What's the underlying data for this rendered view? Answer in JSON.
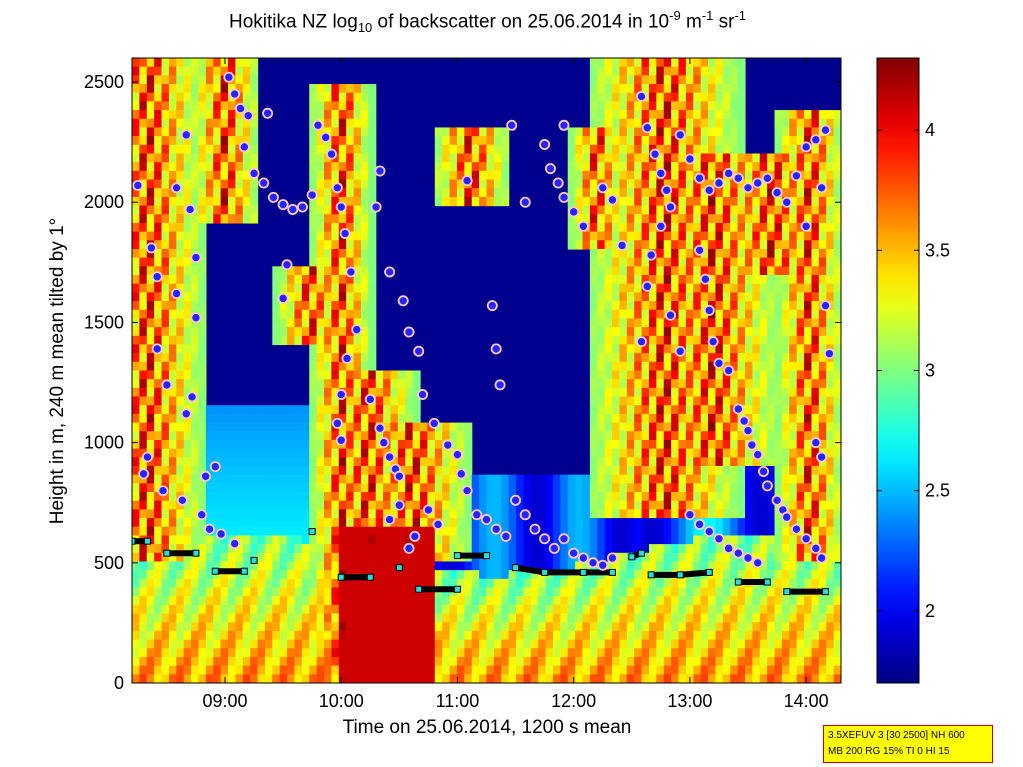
{
  "chart_data": {
    "type": "heatmap",
    "title_parts": [
      "Hokitika NZ log",
      "10",
      " of backscatter on 25.06.2014 in 10",
      "-9",
      " m",
      "-1",
      " sr",
      "-1"
    ],
    "xlabel": "Time on 25.06.2014, 1200 s mean",
    "ylabel": "Height in m, 240 m mean tilted by 1°",
    "x_range": [
      "08:12",
      "14:18"
    ],
    "y_range": [
      0,
      2600
    ],
    "x_ticks": [
      "09:00",
      "10:00",
      "11:00",
      "12:00",
      "13:00",
      "14:00"
    ],
    "y_ticks": [
      0,
      500,
      1000,
      1500,
      2000,
      2500
    ],
    "colorbar": {
      "range": [
        1.7,
        4.3
      ],
      "ticks": [
        2,
        2.5,
        3,
        3.5,
        4
      ],
      "colormap": "jet"
    },
    "series": [
      {
        "name": "cloud base detections",
        "marker": "circle",
        "color": "#2020ff",
        "edge": "#ffc0c0"
      },
      {
        "name": "mixing layer height",
        "marker": "square",
        "color": "#000000"
      },
      {
        "name": "layer markers",
        "marker": "square",
        "color": "#20e0e0"
      }
    ],
    "mixing_layer": [
      [
        "08:12",
        590
      ],
      [
        "08:20",
        590
      ],
      [
        "08:30",
        540
      ],
      [
        "08:45",
        540
      ],
      [
        "08:55",
        465
      ],
      [
        "09:10",
        465
      ],
      [
        "09:15",
        510
      ],
      [
        "09:45",
        630
      ],
      [
        "10:00",
        440
      ],
      [
        "10:15",
        440
      ],
      [
        "10:30",
        480
      ],
      [
        "10:40",
        390
      ],
      [
        "11:00",
        390
      ],
      [
        "11:00",
        530
      ],
      [
        "11:15",
        530
      ],
      [
        "11:30",
        480
      ],
      [
        "11:45",
        460
      ],
      [
        "12:05",
        460
      ],
      [
        "12:20",
        460
      ],
      [
        "12:30",
        525
      ],
      [
        "12:35",
        540
      ],
      [
        "12:40",
        450
      ],
      [
        "12:55",
        450
      ],
      [
        "13:10",
        460
      ],
      [
        "13:25",
        420
      ],
      [
        "13:40",
        420
      ],
      [
        "13:50",
        380
      ],
      [
        "14:10",
        380
      ]
    ],
    "cloud_points": [
      [
        "08:15",
        2070
      ],
      [
        "08:22",
        1810
      ],
      [
        "08:25",
        1690
      ],
      [
        "08:35",
        2060
      ],
      [
        "08:40",
        2280
      ],
      [
        "08:42",
        1970
      ],
      [
        "08:45",
        1770
      ],
      [
        "08:45",
        1520
      ],
      [
        "08:43",
        1190
      ],
      [
        "08:40",
        1120
      ],
      [
        "08:30",
        1240
      ],
      [
        "08:25",
        1390
      ],
      [
        "08:35",
        1620
      ],
      [
        "08:20",
        940
      ],
      [
        "08:18",
        870
      ],
      [
        "08:28",
        800
      ],
      [
        "08:38",
        760
      ],
      [
        "08:48",
        700
      ],
      [
        "08:52",
        640
      ],
      [
        "08:58",
        620
      ],
      [
        "09:05",
        580
      ],
      [
        "08:50",
        860
      ],
      [
        "08:55",
        900
      ],
      [
        "09:02",
        2520
      ],
      [
        "09:05",
        2450
      ],
      [
        "09:08",
        2390
      ],
      [
        "09:12",
        2360
      ],
      [
        "09:10",
        2230
      ],
      [
        "09:15",
        2120
      ],
      [
        "09:20",
        2080
      ],
      [
        "09:25",
        2020
      ],
      [
        "09:30",
        1990
      ],
      [
        "09:35",
        1970
      ],
      [
        "09:40",
        1980
      ],
      [
        "09:45",
        2030
      ],
      [
        "09:48",
        2320
      ],
      [
        "09:52",
        2270
      ],
      [
        "09:55",
        2200
      ],
      [
        "09:58",
        2060
      ],
      [
        "10:00",
        1980
      ],
      [
        "10:02",
        1870
      ],
      [
        "10:05",
        1710
      ],
      [
        "10:08",
        1470
      ],
      [
        "10:03",
        1350
      ],
      [
        "10:00",
        1200
      ],
      [
        "09:58",
        1080
      ],
      [
        "10:00",
        1010
      ],
      [
        "09:32",
        1740
      ],
      [
        "09:30",
        1600
      ],
      [
        "09:22",
        2370
      ],
      [
        "10:15",
        1180
      ],
      [
        "10:20",
        1060
      ],
      [
        "10:22",
        1000
      ],
      [
        "10:25",
        940
      ],
      [
        "10:28",
        890
      ],
      [
        "10:30",
        860
      ],
      [
        "10:20",
        2130
      ],
      [
        "10:18",
        1980
      ],
      [
        "10:25",
        1710
      ],
      [
        "10:32",
        1590
      ],
      [
        "10:35",
        1460
      ],
      [
        "10:40",
        1380
      ],
      [
        "10:42",
        1200
      ],
      [
        "10:48",
        1080
      ],
      [
        "10:55",
        990
      ],
      [
        "11:00",
        950
      ],
      [
        "11:02",
        870
      ],
      [
        "11:05",
        800
      ],
      [
        "11:10",
        700
      ],
      [
        "11:15",
        680
      ],
      [
        "11:20",
        640
      ],
      [
        "11:25",
        610
      ],
      [
        "10:45",
        720
      ],
      [
        "10:50",
        660
      ],
      [
        "10:38",
        610
      ],
      [
        "10:35",
        560
      ],
      [
        "10:30",
        740
      ],
      [
        "10:25",
        680
      ],
      [
        "11:05",
        2090
      ],
      [
        "11:18",
        1570
      ],
      [
        "11:20",
        1390
      ],
      [
        "11:22",
        1240
      ],
      [
        "11:28",
        2320
      ],
      [
        "11:35",
        2000
      ],
      [
        "11:45",
        2240
      ],
      [
        "11:48",
        2140
      ],
      [
        "11:52",
        2080
      ],
      [
        "11:55",
        2020
      ],
      [
        "12:00",
        1960
      ],
      [
        "12:05",
        1900
      ],
      [
        "11:55",
        2320
      ],
      [
        "12:15",
        2060
      ],
      [
        "12:20",
        2010
      ],
      [
        "12:25",
        1820
      ],
      [
        "11:30",
        760
      ],
      [
        "11:35",
        700
      ],
      [
        "11:40",
        640
      ],
      [
        "11:45",
        600
      ],
      [
        "11:50",
        560
      ],
      [
        "11:55",
        600
      ],
      [
        "12:00",
        540
      ],
      [
        "12:05",
        520
      ],
      [
        "12:10",
        500
      ],
      [
        "12:15",
        490
      ],
      [
        "12:20",
        520
      ],
      [
        "12:35",
        2440
      ],
      [
        "12:38",
        2310
      ],
      [
        "12:42",
        2200
      ],
      [
        "12:45",
        2120
      ],
      [
        "12:48",
        2050
      ],
      [
        "12:50",
        1980
      ],
      [
        "12:45",
        1900
      ],
      [
        "12:40",
        1780
      ],
      [
        "12:38",
        1650
      ],
      [
        "12:35",
        1420
      ],
      [
        "12:50",
        1530
      ],
      [
        "12:55",
        1380
      ],
      [
        "12:55",
        2280
      ],
      [
        "13:00",
        2180
      ],
      [
        "13:05",
        2100
      ],
      [
        "13:10",
        2050
      ],
      [
        "13:15",
        2080
      ],
      [
        "13:20",
        2120
      ],
      [
        "13:25",
        2100
      ],
      [
        "13:30",
        2060
      ],
      [
        "13:35",
        2080
      ],
      [
        "13:40",
        2100
      ],
      [
        "13:45",
        2040
      ],
      [
        "13:50",
        2000
      ],
      [
        "13:55",
        2110
      ],
      [
        "14:00",
        2230
      ],
      [
        "14:05",
        2260
      ],
      [
        "14:10",
        2300
      ],
      [
        "14:08",
        2060
      ],
      [
        "14:00",
        1900
      ],
      [
        "13:05",
        1800
      ],
      [
        "13:08",
        1680
      ],
      [
        "13:10",
        1550
      ],
      [
        "13:12",
        1420
      ],
      [
        "13:15",
        1330
      ],
      [
        "13:20",
        1300
      ],
      [
        "13:25",
        1140
      ],
      [
        "13:28",
        1090
      ],
      [
        "13:30",
        1050
      ],
      [
        "13:32",
        990
      ],
      [
        "13:35",
        950
      ],
      [
        "13:38",
        880
      ],
      [
        "13:40",
        820
      ],
      [
        "13:45",
        760
      ],
      [
        "13:48",
        720
      ],
      [
        "13:50",
        690
      ],
      [
        "13:55",
        640
      ],
      [
        "14:00",
        600
      ],
      [
        "14:05",
        560
      ],
      [
        "14:08",
        520
      ],
      [
        "14:10",
        1570
      ],
      [
        "14:12",
        1370
      ],
      [
        "14:05",
        1000
      ],
      [
        "14:08",
        940
      ],
      [
        "13:00",
        700
      ],
      [
        "13:05",
        660
      ],
      [
        "13:10",
        630
      ],
      [
        "13:15",
        600
      ],
      [
        "13:20",
        560
      ],
      [
        "13:25",
        540
      ],
      [
        "13:30",
        520
      ],
      [
        "13:35",
        500
      ]
    ]
  },
  "info_box": {
    "line1": "3.5XEFUV 3 [30 2500] NH 600",
    "line2": "MB 200 RG 15% TI 0 HI 15"
  }
}
